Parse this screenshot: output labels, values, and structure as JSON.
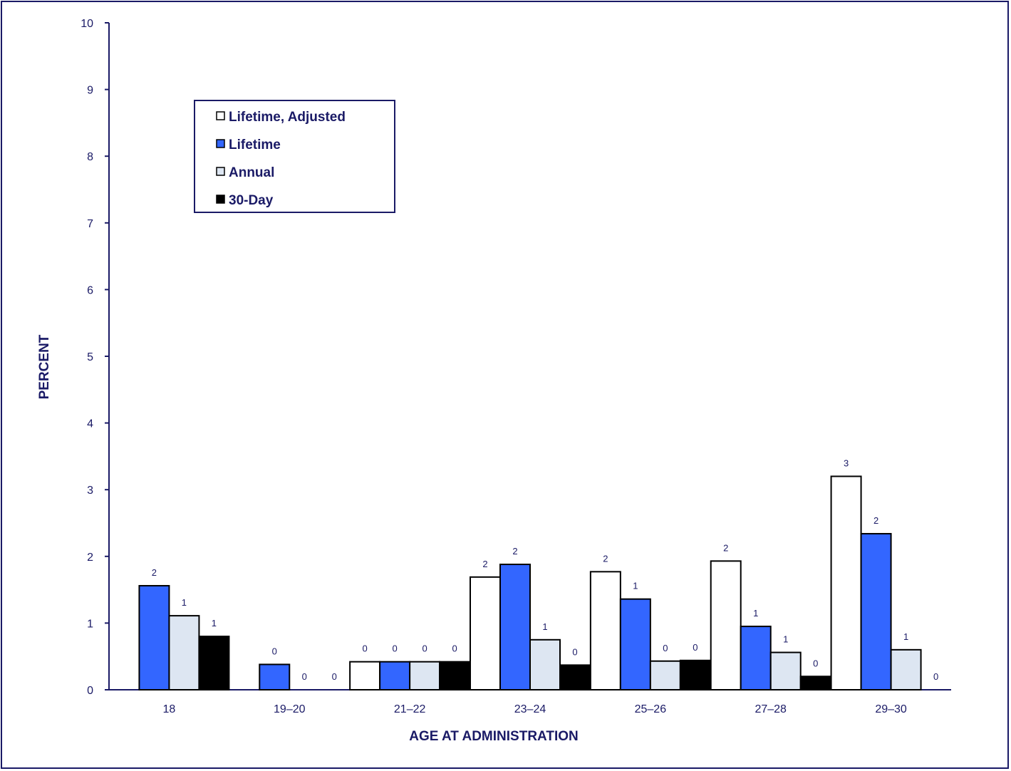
{
  "chart_data": {
    "type": "bar",
    "xlabel": "AGE AT ADMINISTRATION",
    "ylabel": "PERCENT",
    "ylim": [
      0,
      10
    ],
    "yticks": [
      "0",
      "1",
      "2",
      "3",
      "4",
      "5",
      "6",
      "7",
      "8",
      "9",
      "10"
    ],
    "grid": false,
    "legend_position": "top-left",
    "categories": [
      "18",
      "19–20",
      "21–22",
      "23–24",
      "25–26",
      "27–28",
      "29–30"
    ],
    "series": [
      {
        "name": "Lifetime, Adjusted",
        "color": "#ffffff",
        "values": [
          null,
          null,
          0.42,
          1.69,
          1.77,
          1.93,
          3.2
        ],
        "labels": [
          "",
          "",
          "0",
          "2",
          "2",
          "2",
          "3"
        ]
      },
      {
        "name": "Lifetime",
        "color": "#3366ff",
        "values": [
          1.56,
          0.38,
          0.42,
          1.88,
          1.36,
          0.95,
          2.34
        ],
        "labels": [
          "2",
          "0",
          "0",
          "2",
          "1",
          "1",
          "2"
        ]
      },
      {
        "name": "Annual",
        "color": "#dde6f2",
        "values": [
          1.11,
          0,
          0.42,
          0.75,
          0.43,
          0.56,
          0.6
        ],
        "labels": [
          "1",
          "0",
          "0",
          "1",
          "0",
          "1",
          "1"
        ]
      },
      {
        "name": "30-Day",
        "color": "#000000",
        "values": [
          0.8,
          0,
          0.42,
          0.37,
          0.44,
          0.2,
          0
        ],
        "labels": [
          "1",
          "0",
          "0",
          "0",
          "0",
          "0",
          "0"
        ]
      }
    ]
  }
}
